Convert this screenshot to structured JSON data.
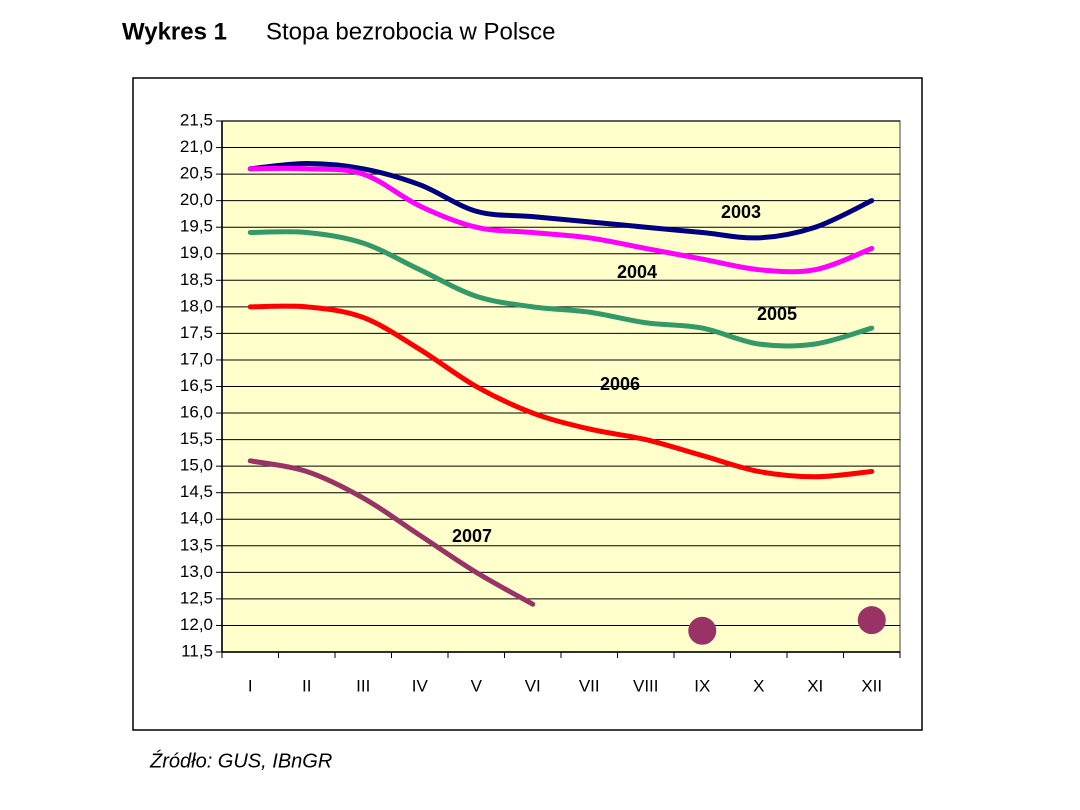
{
  "chart_data": {
    "type": "line",
    "title": "Wykres 1",
    "subtitle": "Stopa bezrobocia w Polsce",
    "source": "Źródło: GUS, IBnGR",
    "categories": [
      "I",
      "II",
      "III",
      "IV",
      "V",
      "VI",
      "VII",
      "VIII",
      "IX",
      "X",
      "XI",
      "XII"
    ],
    "series": [
      {
        "name": "2003",
        "color": "#000080",
        "values": [
          20.6,
          20.7,
          20.6,
          20.3,
          19.8,
          19.7,
          19.6,
          19.5,
          19.4,
          19.3,
          19.5,
          20.0
        ]
      },
      {
        "name": "2004",
        "color": "#ff00ff",
        "values": [
          20.6,
          20.6,
          20.5,
          19.9,
          19.5,
          19.4,
          19.3,
          19.1,
          18.9,
          18.7,
          18.7,
          19.1
        ]
      },
      {
        "name": "2005",
        "color": "#339966",
        "values": [
          19.4,
          19.4,
          19.2,
          18.7,
          18.2,
          18.0,
          17.9,
          17.7,
          17.6,
          17.3,
          17.3,
          17.6
        ]
      },
      {
        "name": "2006",
        "color": "#ff0000",
        "values": [
          18.0,
          18.0,
          17.8,
          17.2,
          16.5,
          16.0,
          15.7,
          15.5,
          15.2,
          14.9,
          14.8,
          14.9
        ]
      },
      {
        "name": "2007",
        "color": "#993366",
        "values": [
          15.1,
          14.9,
          14.4,
          13.7,
          13.0,
          12.4,
          null,
          null,
          null,
          null,
          null,
          null
        ]
      }
    ],
    "dots": {
      "color": "#993366",
      "values": [
        null,
        null,
        null,
        null,
        null,
        null,
        null,
        null,
        11.9,
        null,
        null,
        12.1
      ]
    },
    "ylim": [
      11.5,
      21.5
    ],
    "yticks": [
      {
        "value": 11.5,
        "label": "11,5"
      },
      {
        "value": 12.0,
        "label": "12,0"
      },
      {
        "value": 12.5,
        "label": "12,5"
      },
      {
        "value": 13.0,
        "label": "13,0"
      },
      {
        "value": 13.5,
        "label": "13,5"
      },
      {
        "value": 14.0,
        "label": "14,0"
      },
      {
        "value": 14.5,
        "label": "14,5"
      },
      {
        "value": 15.0,
        "label": "15,0"
      },
      {
        "value": 15.5,
        "label": "15,5"
      },
      {
        "value": 16.0,
        "label": "16,0"
      },
      {
        "value": 16.5,
        "label": "16,5"
      },
      {
        "value": 17.0,
        "label": "17,0"
      },
      {
        "value": 17.5,
        "label": "17,5"
      },
      {
        "value": 18.0,
        "label": "18,0"
      },
      {
        "value": 18.5,
        "label": "18,5"
      },
      {
        "value": 19.0,
        "label": "19,0"
      },
      {
        "value": 19.5,
        "label": "19,5"
      },
      {
        "value": 20.0,
        "label": "20,0"
      },
      {
        "value": 20.5,
        "label": "20,5"
      },
      {
        "value": 21.0,
        "label": "21,0"
      },
      {
        "value": 21.5,
        "label": "21,5"
      }
    ],
    "grid": true,
    "plot_background": "#ffffcc"
  }
}
